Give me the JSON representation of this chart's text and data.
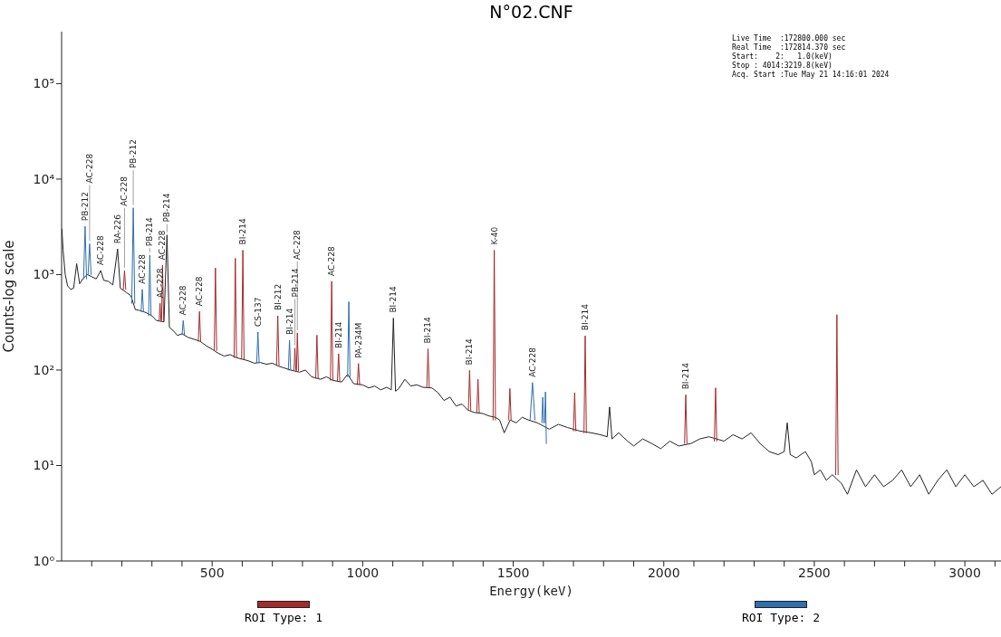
{
  "chart_data": {
    "type": "line",
    "title": "N°02.CNF",
    "xlabel": "Energy(keV)",
    "ylabel": "Counts-log scale",
    "log": true,
    "legend": "bottom",
    "xlim": [
      0,
      3120
    ],
    "xticks": [
      {
        "value": 100,
        "label": null
      },
      {
        "value": 200,
        "label": null
      },
      {
        "value": 300,
        "label": null
      },
      {
        "value": 400,
        "label": null
      },
      500,
      {
        "value": 600,
        "label": null
      },
      {
        "value": 700,
        "label": null
      },
      {
        "value": 800,
        "label": null
      },
      {
        "value": 900,
        "label": null
      },
      1000,
      {
        "value": 1100,
        "label": null
      },
      {
        "value": 1200,
        "label": null
      },
      {
        "value": 1300,
        "label": null
      },
      {
        "value": 1400,
        "label": null
      },
      1500,
      {
        "value": 1600,
        "label": null
      },
      {
        "value": 1700,
        "label": null
      },
      {
        "value": 1800,
        "label": null
      },
      {
        "value": 1900,
        "label": null
      },
      2000,
      {
        "value": 2100,
        "label": null
      },
      {
        "value": 2200,
        "label": null
      },
      {
        "value": 2300,
        "label": null
      },
      {
        "value": 2400,
        "label": null
      },
      2500,
      {
        "value": 2600,
        "label": null
      },
      {
        "value": 2700,
        "label": null
      },
      {
        "value": 2800,
        "label": null
      },
      {
        "value": 2900,
        "label": null
      },
      3000,
      {
        "value": 3100,
        "label": null
      }
    ],
    "ylim": [
      1,
      350000
    ],
    "yticks": [
      {
        "value": 1,
        "label": "10⁰"
      },
      {
        "value": 10,
        "label": "10¹"
      },
      {
        "value": 100,
        "label": "10²"
      },
      {
        "value": 1000,
        "label": "10³"
      },
      {
        "value": 10000,
        "label": "10⁴"
      },
      {
        "value": 100000,
        "label": "10⁵"
      }
    ],
    "series": [
      {
        "color": "#222222",
        "x": [
          1,
          5,
          12,
          20,
          30,
          40,
          50,
          60,
          70,
          85,
          100,
          115,
          130,
          140,
          155,
          170,
          186,
          195,
          215,
          230,
          245,
          260,
          280,
          300,
          315,
          340,
          350,
          358,
          370,
          385,
          400,
          420,
          440,
          460,
          480,
          500,
          520,
          540,
          560,
          580,
          600,
          620,
          640,
          660,
          680,
          700,
          720,
          740,
          760,
          790,
          810,
          830,
          860,
          880,
          900,
          930,
          950,
          970,
          1000,
          1020,
          1040,
          1060,
          1080,
          1095,
          1102,
          1109,
          1120,
          1140,
          1160,
          1180,
          1200,
          1230,
          1250,
          1270,
          1290,
          1310,
          1330,
          1350,
          1370,
          1400,
          1420,
          1440,
          1455,
          1470,
          1490,
          1510,
          1530,
          1550,
          1580,
          1620,
          1650,
          1680,
          1720,
          1760,
          1790,
          1812,
          1820,
          1828,
          1850,
          1880,
          1900,
          1930,
          1960,
          1990,
          2020,
          2050,
          2090,
          2120,
          2150,
          2200,
          2230,
          2260,
          2290,
          2320,
          2350,
          2380,
          2400,
          2410,
          2420,
          2440,
          2470,
          2490,
          2500,
          2520,
          2540,
          2560,
          2590,
          2610,
          2640,
          2670,
          2700,
          2730,
          2760,
          2790,
          2820,
          2850,
          2880,
          2910,
          2940,
          2970,
          3000,
          3030,
          3060,
          3090,
          3120
        ],
        "values": [
          3000,
          1800,
          1000,
          760,
          700,
          720,
          1300,
          800,
          900,
          1000,
          950,
          900,
          1100,
          870,
          850,
          780,
          1850,
          720,
          650,
          600,
          430,
          420,
          400,
          370,
          330,
          320,
          2600,
          280,
          260,
          230,
          240,
          220,
          210,
          200,
          180,
          165,
          150,
          140,
          145,
          135,
          130,
          125,
          118,
          120,
          115,
          118,
          110,
          105,
          100,
          95,
          100,
          85,
          80,
          85,
          78,
          75,
          90,
          72,
          70,
          65,
          68,
          62,
          66,
          62,
          350,
          60,
          64,
          80,
          68,
          70,
          66,
          65,
          58,
          48,
          52,
          42,
          44,
          38,
          36,
          35,
          33,
          32,
          30,
          22,
          30,
          28,
          32,
          30,
          28,
          24,
          27,
          25,
          23,
          22,
          21,
          20,
          41,
          19,
          22,
          18,
          16,
          19,
          17,
          15,
          18,
          16,
          17,
          19,
          20,
          18,
          21,
          19,
          22,
          17,
          14,
          13,
          14,
          28,
          13,
          12,
          14,
          11,
          8,
          9,
          7,
          8,
          6.5,
          5,
          9,
          6,
          8,
          6,
          7,
          9,
          6,
          8,
          5,
          7,
          9,
          6,
          8,
          6,
          7,
          5,
          6
        ]
      },
      {
        "name": "ROI Type: 1",
        "color": "#a52a2a",
        "x": [
          205,
          209,
          213,
          214,
          324,
          327,
          330,
          331,
          332,
          335,
          339,
          340,
          454,
          458,
          462,
          463,
          507,
          511,
          515,
          516,
          573,
          577,
          581,
          582,
          598,
          602,
          606,
          607,
          714,
          718,
          722,
          723,
          772,
          775,
          778,
          779,
          780,
          783,
          787,
          788,
          844,
          848,
          852,
          853,
          893,
          897,
          901,
          902,
          916,
          920,
          924,
          925,
          982,
          986,
          990,
          991,
          1213,
          1217,
          1221,
          1222,
          1351,
          1355,
          1359,
          1360,
          1379,
          1383,
          1387,
          1388,
          1433,
          1437,
          1441,
          1442,
          1485,
          1489,
          1493,
          1494,
          1700,
          1704,
          1708,
          1709,
          1735,
          1739,
          1743,
          1744,
          2069,
          2073,
          2077,
          2078,
          2168,
          2172,
          2176,
          2177,
          2571,
          2575,
          2579
        ],
        "values": [
          700,
          1100,
          700,
          null,
          330,
          500,
          330,
          null,
          330,
          1250,
          330,
          null,
          200,
          410,
          200,
          null,
          160,
          1170,
          160,
          null,
          135,
          1480,
          135,
          null,
          130,
          1800,
          130,
          null,
          112,
          370,
          112,
          null,
          100,
          170,
          100,
          null,
          98,
          245,
          98,
          null,
          82,
          232,
          82,
          null,
          78,
          850,
          78,
          null,
          76,
          148,
          76,
          null,
          70,
          117,
          70,
          null,
          66,
          167,
          66,
          null,
          38,
          99,
          38,
          null,
          36,
          80,
          36,
          null,
          30,
          1800,
          30,
          null,
          30,
          64,
          30,
          null,
          23,
          58,
          23,
          null,
          22,
          228,
          22,
          null,
          17,
          55,
          17,
          null,
          18,
          65,
          18,
          null,
          8,
          380,
          8
        ]
      },
      {
        "name": "ROI Type: 2",
        "color": "#2e6fb0",
        "x": [
          73,
          78,
          83,
          84,
          88,
          93,
          98,
          99,
          233,
          238,
          243,
          244,
          264,
          268,
          272,
          273,
          289,
          293,
          297,
          298,
          400,
          404,
          408,
          409,
          648,
          652,
          656,
          657,
          753,
          757,
          761,
          762,
          950,
          954,
          958,
          959,
          1556,
          1564,
          1572,
          1573,
          1595,
          1598,
          1601,
          1602,
          1604,
          1607,
          1610
        ],
        "values": [
          900,
          3200,
          900,
          null,
          1000,
          2100,
          1000,
          null,
          500,
          5000,
          500,
          null,
          410,
          700,
          410,
          null,
          370,
          1600,
          370,
          null,
          235,
          330,
          235,
          null,
          120,
          250,
          120,
          null,
          100,
          205,
          100,
          null,
          85,
          520,
          85,
          null,
          30,
          74,
          30,
          null,
          28,
          52,
          28,
          null,
          28,
          59,
          17
        ]
      }
    ],
    "annotations": [
      "Live Time  :172800.000 sec",
      "Real Time  :172814.370 sec",
      "Start:    2:   1.0(keV)",
      "Stop : 4014:3219.8(keV)",
      "Acq. Start :Tue May 21 14:16:01 2024",
      {
        "text": "PB-212",
        "x": 78,
        "y": 3200
      },
      {
        "text": "AC-228",
        "x": 93,
        "y": 2100
      },
      {
        "text": "AC-228",
        "x": 130,
        "y": 1100
      },
      {
        "text": "RA-226",
        "x": 186,
        "y": 1850
      },
      {
        "text": "AC-228",
        "x": 209,
        "y": 1100
      },
      {
        "text": "PB-212",
        "x": 238,
        "y": 5000
      },
      {
        "text": "AC-228",
        "x": 268,
        "y": 700
      },
      {
        "text": "PB-214",
        "x": 293,
        "y": 1600
      },
      {
        "text": "AC-228",
        "x": 327,
        "y": 500
      },
      {
        "text": "AC-228",
        "x": 335,
        "y": 1250
      },
      {
        "text": "PB-214",
        "x": 350,
        "y": 2600
      },
      {
        "text": "AC-228",
        "x": 404,
        "y": 330
      },
      {
        "text": "AC-228",
        "x": 458,
        "y": 410
      },
      {
        "text": "BI-214",
        "x": 602,
        "y": 1800
      },
      {
        "text": "CS-137",
        "x": 652,
        "y": 250
      },
      {
        "text": "BI-212",
        "x": 718,
        "y": 370
      },
      {
        "text": "BI-214",
        "x": 757,
        "y": 205
      },
      {
        "text": "PB-214",
        "x": 775,
        "y": 170
      },
      {
        "text": "AC-228",
        "x": 783,
        "y": 245
      },
      {
        "text": "AC-228",
        "x": 897,
        "y": 850
      },
      {
        "text": "BI-214",
        "x": 920,
        "y": 148
      },
      {
        "text": "PA-234M",
        "x": 986,
        "y": 117
      },
      {
        "text": "BI-214",
        "x": 1102,
        "y": 350
      },
      {
        "text": "BI-214",
        "x": 1217,
        "y": 167
      },
      {
        "text": "BI-214",
        "x": 1355,
        "y": 99
      },
      {
        "text": "K-40",
        "x": 1437,
        "y": 1800
      },
      {
        "text": "AC-228",
        "x": 1564,
        "y": 74
      },
      {
        "text": "BI-214",
        "x": 1739,
        "y": 228
      },
      {
        "text": "BI-214",
        "x": 2073,
        "y": 55
      }
    ]
  }
}
